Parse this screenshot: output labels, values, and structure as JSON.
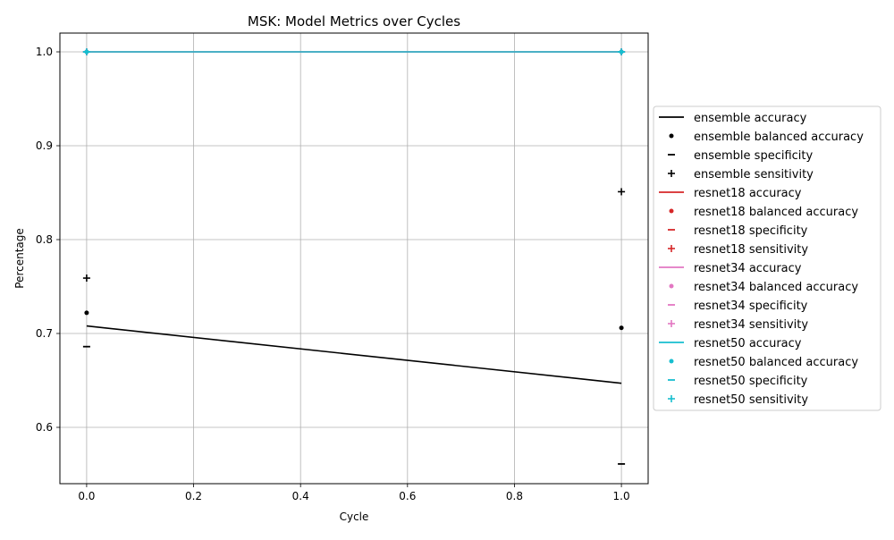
{
  "chart_data": {
    "type": "line",
    "title": "MSK: Model Metrics over Cycles",
    "xlabel": "Cycle",
    "ylabel": "Percentage",
    "xlim": [
      -0.05,
      1.05
    ],
    "ylim": [
      0.54,
      1.02
    ],
    "xticks": [
      "0.0",
      "0.2",
      "0.4",
      "0.6",
      "0.8",
      "1.0"
    ],
    "yticks": [
      "0.6",
      "0.7",
      "0.8",
      "0.9",
      "1.0"
    ],
    "grid": true,
    "legend_position": "right, outside plot",
    "x": [
      0,
      1
    ],
    "series": [
      {
        "name": "ensemble accuracy",
        "marker": "line",
        "color": "#000000",
        "values": [
          0.708,
          0.647
        ]
      },
      {
        "name": "ensemble balanced accuracy",
        "marker": "dot",
        "color": "#000000",
        "values": [
          0.722,
          0.706
        ]
      },
      {
        "name": "ensemble specificity",
        "marker": "dash",
        "color": "#000000",
        "values": [
          0.686,
          0.561
        ]
      },
      {
        "name": "ensemble sensitivity",
        "marker": "plus",
        "color": "#000000",
        "values": [
          0.759,
          0.851
        ]
      },
      {
        "name": "resnet18 accuracy",
        "marker": "line",
        "color": "#d62728",
        "values": [
          1.0,
          1.0
        ]
      },
      {
        "name": "resnet18 balanced accuracy",
        "marker": "dot",
        "color": "#d62728",
        "values": [
          1.0,
          1.0
        ]
      },
      {
        "name": "resnet18 specificity",
        "marker": "dash",
        "color": "#d62728",
        "values": [
          1.0,
          1.0
        ]
      },
      {
        "name": "resnet18 sensitivity",
        "marker": "plus",
        "color": "#d62728",
        "values": [
          1.0,
          1.0
        ]
      },
      {
        "name": "resnet34 accuracy",
        "marker": "line",
        "color": "#e377c2",
        "values": [
          1.0,
          1.0
        ]
      },
      {
        "name": "resnet34 balanced accuracy",
        "marker": "dot",
        "color": "#e377c2",
        "values": [
          1.0,
          1.0
        ]
      },
      {
        "name": "resnet34 specificity",
        "marker": "dash",
        "color": "#e377c2",
        "values": [
          1.0,
          1.0
        ]
      },
      {
        "name": "resnet34 sensitivity",
        "marker": "plus",
        "color": "#e377c2",
        "values": [
          1.0,
          1.0
        ]
      },
      {
        "name": "resnet50 accuracy",
        "marker": "line",
        "color": "#17becf",
        "values": [
          1.0,
          1.0
        ]
      },
      {
        "name": "resnet50 balanced accuracy",
        "marker": "dot",
        "color": "#17becf",
        "values": [
          1.0,
          1.0
        ]
      },
      {
        "name": "resnet50 specificity",
        "marker": "dash",
        "color": "#17becf",
        "values": [
          1.0,
          1.0
        ]
      },
      {
        "name": "resnet50 sensitivity",
        "marker": "plus",
        "color": "#17becf",
        "values": [
          1.0,
          1.0
        ]
      }
    ]
  }
}
